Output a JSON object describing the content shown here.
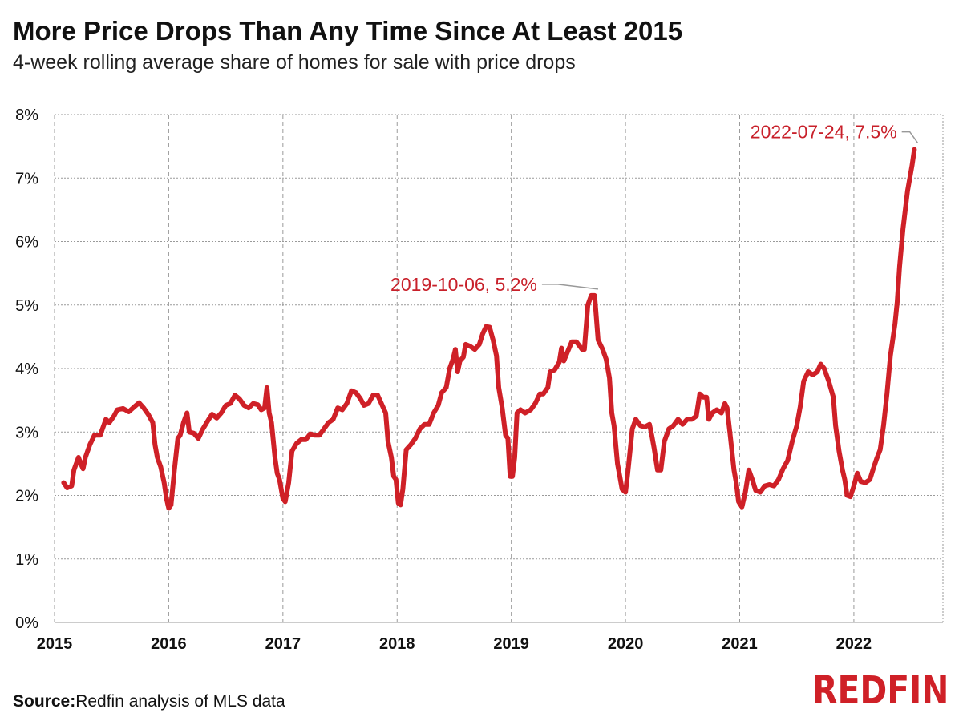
{
  "title": "More Price Drops Than Any Time Since At Least 2015",
  "subtitle": "4-week rolling average share of homes for sale with price drops",
  "footer": {
    "source_label": "Source:",
    "source_text": "Redfin analysis of MLS data"
  },
  "logo": {
    "text": "REDFIN",
    "color": "#cf2027"
  },
  "colors": {
    "line": "#cf2027",
    "grid": "#9a9a9a",
    "annotation_text": "#c8202a",
    "leader": "#999999"
  },
  "chart_data": {
    "type": "line",
    "title": "More Price Drops Than Any Time Since At Least 2015",
    "subtitle": "4-week rolling average share of homes for sale with price drops",
    "xlabel": "",
    "ylabel": "",
    "x_ticks": [
      "2015",
      "2016",
      "2017",
      "2018",
      "2019",
      "2020",
      "2021",
      "2022"
    ],
    "y_ticks": [
      "0%",
      "1%",
      "2%",
      "3%",
      "4%",
      "5%",
      "6%",
      "7%",
      "8%"
    ],
    "ylim": [
      0,
      8
    ],
    "xlim": [
      2015.0,
      2022.78
    ],
    "grid": true,
    "legend": "none",
    "annotations": [
      {
        "label": "2019-10-06, 5.2%",
        "x": 2019.76,
        "y": 5.2
      },
      {
        "label": "2022-07-24, 7.5%",
        "x": 2022.56,
        "y": 7.5
      }
    ],
    "series": [
      {
        "points": [
          [
            2015.08,
            2.2
          ],
          [
            2015.11,
            2.12
          ],
          [
            2015.15,
            2.15
          ],
          [
            2015.17,
            2.4
          ],
          [
            2015.21,
            2.6
          ],
          [
            2015.23,
            2.5
          ],
          [
            2015.25,
            2.42
          ],
          [
            2015.27,
            2.6
          ],
          [
            2015.31,
            2.8
          ],
          [
            2015.35,
            2.95
          ],
          [
            2015.4,
            2.95
          ],
          [
            2015.45,
            3.2
          ],
          [
            2015.48,
            3.15
          ],
          [
            2015.52,
            3.25
          ],
          [
            2015.55,
            3.35
          ],
          [
            2015.6,
            3.37
          ],
          [
            2015.65,
            3.32
          ],
          [
            2015.7,
            3.4
          ],
          [
            2015.74,
            3.46
          ],
          [
            2015.78,
            3.38
          ],
          [
            2015.82,
            3.28
          ],
          [
            2015.86,
            3.15
          ],
          [
            2015.88,
            2.8
          ],
          [
            2015.9,
            2.6
          ],
          [
            2015.93,
            2.45
          ],
          [
            2015.96,
            2.2
          ],
          [
            2015.98,
            1.95
          ],
          [
            2016.0,
            1.8
          ],
          [
            2016.02,
            1.85
          ],
          [
            2016.05,
            2.4
          ],
          [
            2016.08,
            2.9
          ],
          [
            2016.1,
            2.95
          ],
          [
            2016.13,
            3.15
          ],
          [
            2016.16,
            3.3
          ],
          [
            2016.18,
            3.0
          ],
          [
            2016.22,
            2.98
          ],
          [
            2016.26,
            2.9
          ],
          [
            2016.3,
            3.05
          ],
          [
            2016.35,
            3.2
          ],
          [
            2016.38,
            3.28
          ],
          [
            2016.42,
            3.22
          ],
          [
            2016.46,
            3.3
          ],
          [
            2016.5,
            3.42
          ],
          [
            2016.54,
            3.45
          ],
          [
            2016.58,
            3.58
          ],
          [
            2016.62,
            3.52
          ],
          [
            2016.66,
            3.42
          ],
          [
            2016.7,
            3.38
          ],
          [
            2016.74,
            3.45
          ],
          [
            2016.78,
            3.43
          ],
          [
            2016.81,
            3.35
          ],
          [
            2016.84,
            3.38
          ],
          [
            2016.86,
            3.7
          ],
          [
            2016.88,
            3.3
          ],
          [
            2016.9,
            3.15
          ],
          [
            2016.93,
            2.6
          ],
          [
            2016.95,
            2.35
          ],
          [
            2016.97,
            2.25
          ],
          [
            2017.0,
            1.95
          ],
          [
            2017.02,
            1.9
          ],
          [
            2017.05,
            2.2
          ],
          [
            2017.08,
            2.7
          ],
          [
            2017.12,
            2.82
          ],
          [
            2017.16,
            2.88
          ],
          [
            2017.2,
            2.88
          ],
          [
            2017.24,
            2.97
          ],
          [
            2017.28,
            2.95
          ],
          [
            2017.32,
            2.95
          ],
          [
            2017.36,
            3.05
          ],
          [
            2017.4,
            3.15
          ],
          [
            2017.44,
            3.2
          ],
          [
            2017.48,
            3.38
          ],
          [
            2017.52,
            3.35
          ],
          [
            2017.56,
            3.45
          ],
          [
            2017.6,
            3.65
          ],
          [
            2017.64,
            3.62
          ],
          [
            2017.68,
            3.52
          ],
          [
            2017.71,
            3.42
          ],
          [
            2017.75,
            3.45
          ],
          [
            2017.79,
            3.58
          ],
          [
            2017.83,
            3.58
          ],
          [
            2017.87,
            3.42
          ],
          [
            2017.9,
            3.3
          ],
          [
            2017.92,
            2.85
          ],
          [
            2017.95,
            2.6
          ],
          [
            2017.97,
            2.3
          ],
          [
            2017.99,
            2.25
          ],
          [
            2018.01,
            1.88
          ],
          [
            2018.03,
            1.85
          ],
          [
            2018.05,
            2.1
          ],
          [
            2018.08,
            2.72
          ],
          [
            2018.12,
            2.8
          ],
          [
            2018.16,
            2.9
          ],
          [
            2018.2,
            3.05
          ],
          [
            2018.24,
            3.12
          ],
          [
            2018.28,
            3.12
          ],
          [
            2018.32,
            3.3
          ],
          [
            2018.36,
            3.42
          ],
          [
            2018.39,
            3.62
          ],
          [
            2018.43,
            3.7
          ],
          [
            2018.46,
            4.0
          ],
          [
            2018.49,
            4.15
          ],
          [
            2018.51,
            4.3
          ],
          [
            2018.53,
            3.95
          ],
          [
            2018.55,
            4.12
          ],
          [
            2018.58,
            4.18
          ],
          [
            2018.6,
            4.38
          ],
          [
            2018.64,
            4.35
          ],
          [
            2018.68,
            4.3
          ],
          [
            2018.72,
            4.38
          ],
          [
            2018.75,
            4.55
          ],
          [
            2018.78,
            4.66
          ],
          [
            2018.81,
            4.65
          ],
          [
            2018.84,
            4.45
          ],
          [
            2018.87,
            4.2
          ],
          [
            2018.89,
            3.7
          ],
          [
            2018.92,
            3.38
          ],
          [
            2018.95,
            2.95
          ],
          [
            2018.97,
            2.9
          ],
          [
            2018.99,
            2.3
          ],
          [
            2019.01,
            2.3
          ],
          [
            2019.03,
            2.6
          ],
          [
            2019.05,
            3.3
          ],
          [
            2019.08,
            3.35
          ],
          [
            2019.12,
            3.3
          ],
          [
            2019.17,
            3.35
          ],
          [
            2019.21,
            3.45
          ],
          [
            2019.25,
            3.6
          ],
          [
            2019.28,
            3.6
          ],
          [
            2019.32,
            3.7
          ],
          [
            2019.34,
            3.95
          ],
          [
            2019.38,
            3.98
          ],
          [
            2019.42,
            4.1
          ],
          [
            2019.44,
            4.32
          ],
          [
            2019.46,
            4.12
          ],
          [
            2019.49,
            4.25
          ],
          [
            2019.53,
            4.42
          ],
          [
            2019.57,
            4.42
          ],
          [
            2019.6,
            4.35
          ],
          [
            2019.62,
            4.3
          ],
          [
            2019.64,
            4.3
          ],
          [
            2019.67,
            5.0
          ],
          [
            2019.7,
            5.15
          ],
          [
            2019.73,
            5.15
          ],
          [
            2019.76,
            4.45
          ],
          [
            2019.8,
            4.3
          ],
          [
            2019.83,
            4.15
          ],
          [
            2019.86,
            3.85
          ],
          [
            2019.88,
            3.3
          ],
          [
            2019.9,
            3.1
          ],
          [
            2019.93,
            2.5
          ],
          [
            2019.95,
            2.3
          ],
          [
            2019.97,
            2.1
          ],
          [
            2020.0,
            2.05
          ],
          [
            2020.02,
            2.35
          ],
          [
            2020.06,
            3.05
          ],
          [
            2020.09,
            3.2
          ],
          [
            2020.13,
            3.1
          ],
          [
            2020.17,
            3.08
          ],
          [
            2020.21,
            3.12
          ],
          [
            2020.23,
            2.95
          ],
          [
            2020.25,
            2.75
          ],
          [
            2020.28,
            2.4
          ],
          [
            2020.31,
            2.4
          ],
          [
            2020.34,
            2.85
          ],
          [
            2020.38,
            3.05
          ],
          [
            2020.42,
            3.1
          ],
          [
            2020.46,
            3.2
          ],
          [
            2020.5,
            3.12
          ],
          [
            2020.54,
            3.2
          ],
          [
            2020.58,
            3.2
          ],
          [
            2020.62,
            3.25
          ],
          [
            2020.65,
            3.6
          ],
          [
            2020.68,
            3.55
          ],
          [
            2020.71,
            3.55
          ],
          [
            2020.73,
            3.2
          ],
          [
            2020.76,
            3.3
          ],
          [
            2020.8,
            3.35
          ],
          [
            2020.84,
            3.3
          ],
          [
            2020.87,
            3.45
          ],
          [
            2020.89,
            3.38
          ],
          [
            2020.92,
            2.9
          ],
          [
            2020.95,
            2.4
          ],
          [
            2020.97,
            2.2
          ],
          [
            2020.99,
            1.9
          ],
          [
            2021.02,
            1.82
          ],
          [
            2021.05,
            2.05
          ],
          [
            2021.08,
            2.4
          ],
          [
            2021.11,
            2.25
          ],
          [
            2021.14,
            2.08
          ],
          [
            2021.18,
            2.05
          ],
          [
            2021.22,
            2.15
          ],
          [
            2021.26,
            2.17
          ],
          [
            2021.3,
            2.15
          ],
          [
            2021.34,
            2.25
          ],
          [
            2021.38,
            2.42
          ],
          [
            2021.42,
            2.55
          ],
          [
            2021.46,
            2.85
          ],
          [
            2021.5,
            3.1
          ],
          [
            2021.53,
            3.4
          ],
          [
            2021.56,
            3.8
          ],
          [
            2021.6,
            3.95
          ],
          [
            2021.64,
            3.9
          ],
          [
            2021.68,
            3.95
          ],
          [
            2021.71,
            4.07
          ],
          [
            2021.74,
            4.0
          ],
          [
            2021.78,
            3.8
          ],
          [
            2021.82,
            3.55
          ],
          [
            2021.84,
            3.1
          ],
          [
            2021.87,
            2.7
          ],
          [
            2021.9,
            2.4
          ],
          [
            2021.92,
            2.25
          ],
          [
            2021.94,
            2.0
          ],
          [
            2021.97,
            1.98
          ],
          [
            2022.0,
            2.15
          ],
          [
            2022.03,
            2.35
          ],
          [
            2022.06,
            2.22
          ],
          [
            2022.1,
            2.2
          ],
          [
            2022.14,
            2.25
          ],
          [
            2022.17,
            2.42
          ],
          [
            2022.2,
            2.58
          ],
          [
            2022.23,
            2.72
          ],
          [
            2022.26,
            3.1
          ],
          [
            2022.29,
            3.6
          ],
          [
            2022.32,
            4.2
          ],
          [
            2022.36,
            4.7
          ],
          [
            2022.38,
            5.05
          ],
          [
            2022.4,
            5.6
          ],
          [
            2022.43,
            6.2
          ],
          [
            2022.47,
            6.8
          ],
          [
            2022.51,
            7.2
          ],
          [
            2022.53,
            7.45
          ]
        ]
      }
    ]
  }
}
